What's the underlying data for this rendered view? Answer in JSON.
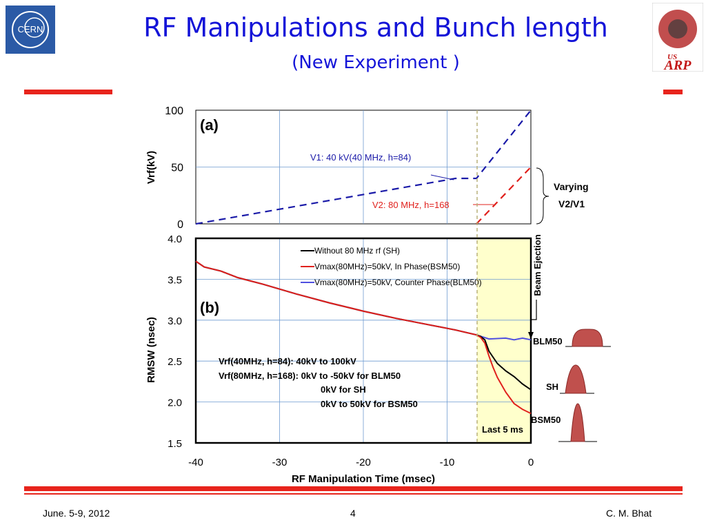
{
  "slide": {
    "title": "RF Manipulations and  Bunch length",
    "subtitle": "(New Experiment )",
    "footer_left": "June. 5-9, 2012",
    "footer_center": "4",
    "footer_right": "C. M. Bhat",
    "logo_left_text": "CERN",
    "logo_right_text_small": "US",
    "logo_right_text": "ARP"
  },
  "colors": {
    "title": "#1414d8",
    "accent_bar": "#e8241c",
    "v1": "#1a1aa8",
    "v2": "#e0201c",
    "bunch": "#c0504d",
    "highlight": "#ffffcc"
  },
  "chart_data": [
    {
      "type": "line",
      "panel_label": "(a)",
      "ylabel": "Vrf(kV)",
      "xlim": [
        -40,
        0
      ],
      "ylim": [
        0,
        100
      ],
      "yticks": [
        "0",
        "50",
        "100"
      ],
      "grid": true,
      "series": [
        {
          "name": "V1",
          "style": "dashed",
          "x": [
            -40,
            -9,
            -6.5,
            0
          ],
          "y": [
            0,
            40,
            40,
            100
          ]
        },
        {
          "name": "V2",
          "style": "dashed",
          "x": [
            -6.5,
            0
          ],
          "y": [
            0,
            50
          ]
        }
      ],
      "annotations": [
        "V1: 40 kV(40 MHz, h=84)",
        "V2: 80 MHz, h=168",
        "Varying",
        "V2/V1"
      ]
    },
    {
      "type": "line",
      "panel_label": "(b)",
      "xlabel": "RF Manipulation Time (msec)",
      "ylabel": "RMSW (nsec)",
      "xlim": [
        -40,
        0
      ],
      "ylim": [
        1.5,
        4.0
      ],
      "xticks": [
        "-40",
        "-30",
        "-20",
        "-10",
        "0"
      ],
      "yticks": [
        "1.5",
        "2.0",
        "2.5",
        "3.0",
        "3.5",
        "4.0"
      ],
      "grid": true,
      "legend_placement": "top-right",
      "series": [
        {
          "name": "Without 80 MHz rf (SH)",
          "color": "#000000",
          "x": [
            -40,
            -39,
            -37,
            -35,
            -32,
            -28,
            -24,
            -20,
            -16,
            -12,
            -9,
            -6.5,
            -6,
            -5.5,
            -5,
            -4,
            -3,
            -2,
            -1,
            0
          ],
          "y": [
            3.72,
            3.65,
            3.6,
            3.52,
            3.44,
            3.32,
            3.21,
            3.11,
            3.02,
            2.94,
            2.88,
            2.82,
            2.8,
            2.76,
            2.62,
            2.47,
            2.38,
            2.31,
            2.22,
            2.15
          ]
        },
        {
          "name": "Vmax(80MHz)=50kV, In Phase(BSM50)",
          "color": "#e0201c",
          "x": [
            -40,
            -39,
            -37,
            -35,
            -32,
            -28,
            -24,
            -20,
            -16,
            -12,
            -9,
            -6.5,
            -6,
            -5.5,
            -5,
            -4.5,
            -4,
            -3,
            -2,
            -1,
            0
          ],
          "y": [
            3.72,
            3.65,
            3.6,
            3.52,
            3.44,
            3.32,
            3.21,
            3.11,
            3.02,
            2.94,
            2.88,
            2.82,
            2.79,
            2.72,
            2.56,
            2.42,
            2.3,
            2.12,
            1.98,
            1.91,
            1.86
          ]
        },
        {
          "name": "Vmax(80MHz)=50kV, Counter Phase(BLM50)",
          "color": "#4f4fe0",
          "x": [
            -40,
            -39,
            -37,
            -35,
            -32,
            -28,
            -24,
            -20,
            -16,
            -12,
            -9,
            -6.5,
            -5,
            -3,
            -2,
            -1,
            0
          ],
          "y": [
            3.72,
            3.65,
            3.6,
            3.52,
            3.44,
            3.32,
            3.21,
            3.11,
            3.02,
            2.94,
            2.88,
            2.82,
            2.77,
            2.78,
            2.76,
            2.78,
            2.76
          ]
        }
      ],
      "annotations": {
        "setup_lines": [
          "Vrf(40MHz, h=84):  40kV to 100kV",
          "Vrf(80MHz, h=168):  0kV to -50kV for BLM50",
          "0kV for SH",
          "0kV to 50kV for BSM50"
        ],
        "beam_ejection": "Beam Ejection",
        "last_window": "Last 5 ms",
        "bunch_labels": [
          "BLM50",
          "SH",
          "BSM50"
        ]
      }
    }
  ]
}
